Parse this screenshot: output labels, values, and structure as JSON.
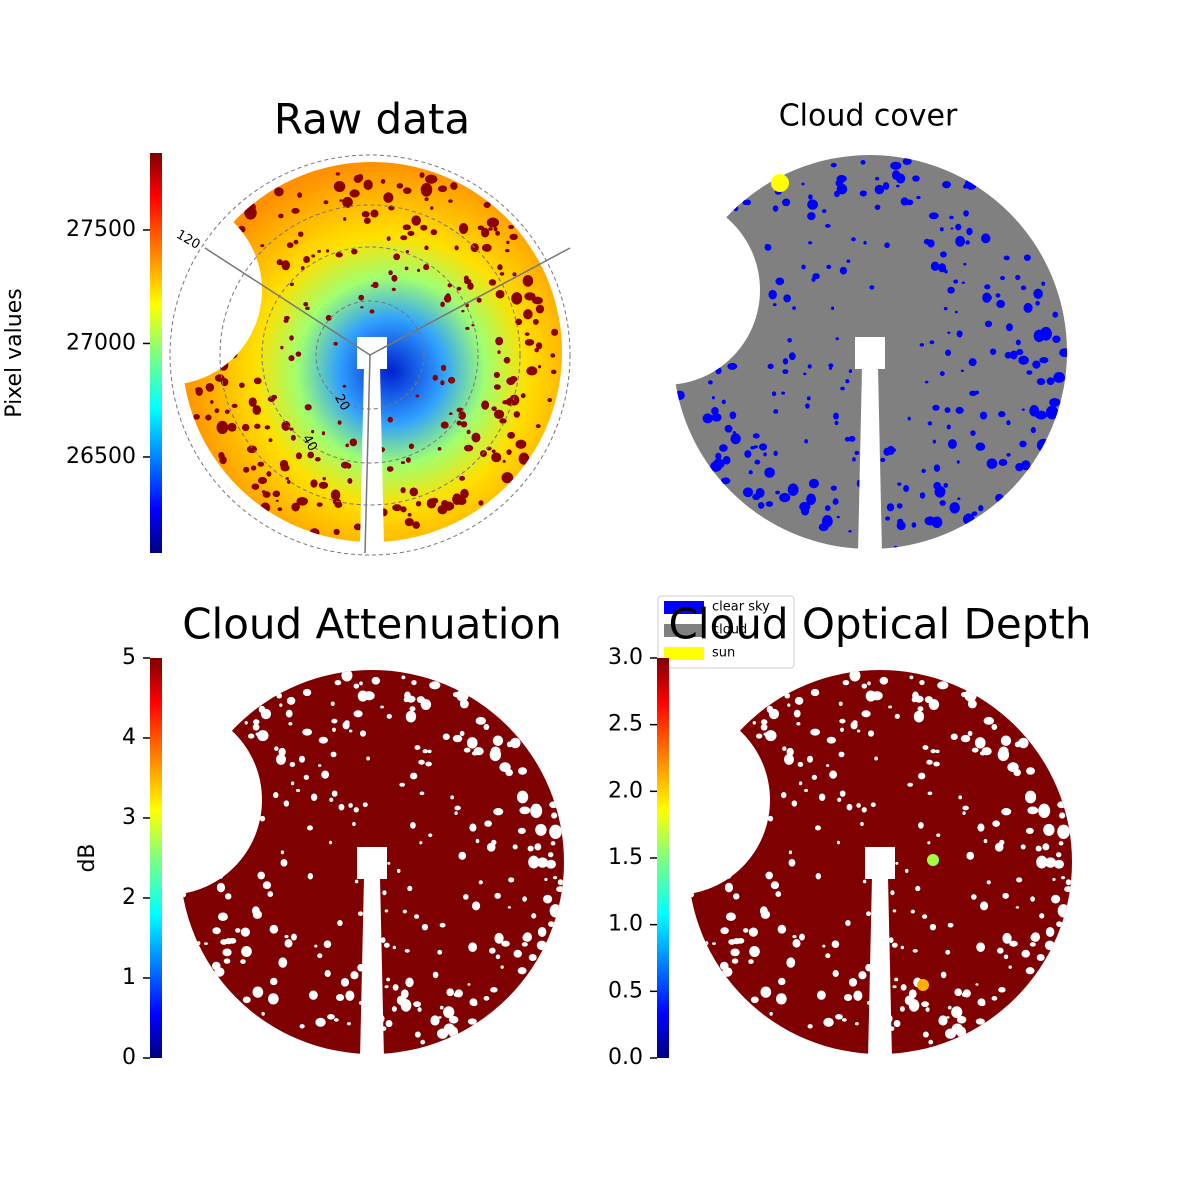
{
  "chart_data": [
    {
      "type": "image",
      "title": "Raw data",
      "colormap": "jet",
      "colorbar": {
        "label": "Pixel values",
        "ylim": [
          26077,
          27839
        ],
        "yticks": [
          26500,
          27000,
          27500
        ]
      },
      "theta_ticks": [
        120
      ],
      "r_ticks": [
        20,
        40
      ]
    },
    {
      "type": "image",
      "title": "Cloud cover",
      "legend": "lower left",
      "series": [
        {
          "name": "clear sky",
          "color": "#0000ff"
        },
        {
          "name": "cloud",
          "color": "#808080"
        },
        {
          "name": "sun",
          "color": "#ffff00"
        }
      ]
    },
    {
      "type": "image",
      "title": "Cloud Attenuation",
      "colormap": "jet",
      "colorbar": {
        "label": "dB",
        "ylim": [
          0,
          5
        ],
        "yticks": [
          0,
          1,
          2,
          3,
          4,
          5
        ]
      }
    },
    {
      "type": "image",
      "title": "Cloud Optical Depth",
      "colormap": "jet",
      "colorbar": {
        "ylim": [
          0,
          3
        ],
        "yticks": [
          {
            "value": 0,
            "label": "0.0"
          },
          0.5,
          {
            "value": 1,
            "label": "1.0"
          },
          1.5,
          {
            "value": 2,
            "label": "2.0"
          },
          2.5,
          {
            "value": 3,
            "label": "3.0"
          }
        ]
      }
    }
  ]
}
